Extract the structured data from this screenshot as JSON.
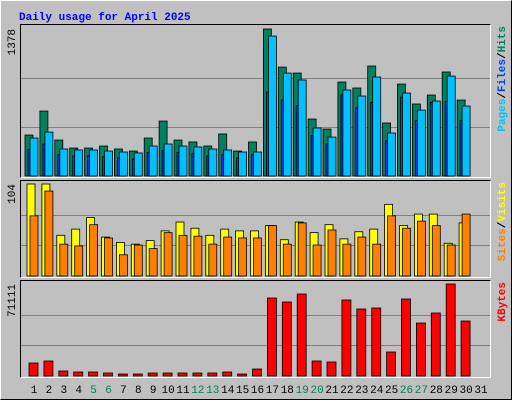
{
  "title": "Daily usage for April 2025",
  "separator": "/",
  "weekend_days": [
    "5",
    "6",
    "12",
    "13",
    "19",
    "20",
    "26",
    "27"
  ],
  "weekend_color": "#00805c",
  "chart_data": [
    {
      "type": "bar",
      "ylim": [
        0,
        1378
      ],
      "yticks": [
        1378
      ],
      "grid": true,
      "series": [
        {
          "name": "Hits",
          "color": "#00805c",
          "values": [
            384,
            609,
            337,
            262,
            262,
            281,
            253,
            234,
            356,
            515,
            337,
            319,
            281,
            394,
            234,
            319,
            1378,
            1021,
            965,
            534,
            440,
            881,
            825,
            1031,
            497,
            862,
            675,
            759,
            975,
            712,
            0
          ]
        },
        {
          "name": "Files",
          "color": "#0040ff",
          "values": [
            250,
            300,
            200,
            190,
            190,
            180,
            170,
            160,
            220,
            240,
            220,
            210,
            190,
            200,
            170,
            200,
            787,
            712,
            660,
            380,
            300,
            760,
            640,
            690,
            330,
            740,
            520,
            690,
            700,
            520,
            0
          ]
        },
        {
          "name": "Pages",
          "color": "#00c0ff",
          "values": [
            356,
            412,
            253,
            244,
            244,
            234,
            225,
            216,
            281,
            300,
            281,
            272,
            253,
            244,
            225,
            225,
            1312,
            965,
            900,
            450,
            365,
            806,
            750,
            928,
            403,
            778,
            618,
            703,
            937,
            656,
            0
          ]
        }
      ]
    },
    {
      "type": "bar",
      "ylim": [
        0,
        104
      ],
      "yticks": [
        104
      ],
      "grid": true,
      "series": [
        {
          "name": "Visits",
          "color": "#ffff00",
          "values": [
            104,
            104,
            46,
            53,
            66,
            44,
            38,
            36,
            40,
            51,
            61,
            54,
            46,
            53,
            51,
            51,
            57,
            41,
            61,
            49,
            58,
            42,
            50,
            53,
            81,
            57,
            70,
            70,
            37,
            60,
            0
          ]
        },
        {
          "name": "Sites",
          "color": "#ff8000",
          "values": [
            68,
            96,
            36,
            34,
            58,
            43,
            24,
            35,
            31,
            49,
            46,
            45,
            36,
            44,
            43,
            43,
            57,
            36,
            60,
            35,
            52,
            36,
            44,
            36,
            68,
            54,
            62,
            57,
            35,
            70,
            0
          ]
        }
      ]
    },
    {
      "type": "bar",
      "ylim": [
        0,
        71111
      ],
      "yticks": [
        71111
      ],
      "grid": true,
      "categories": [
        "1",
        "2",
        "3",
        "4",
        "5",
        "6",
        "7",
        "8",
        "9",
        "10",
        "11",
        "12",
        "13",
        "14",
        "15",
        "16",
        "17",
        "18",
        "19",
        "20",
        "21",
        "22",
        "23",
        "24",
        "25",
        "26",
        "27",
        "28",
        "29",
        "30",
        "31"
      ],
      "series": [
        {
          "name": "KBytes",
          "color": "#ff0000",
          "values": [
            10049,
            11595,
            3865,
            3092,
            3092,
            2319,
            1546,
            1546,
            2319,
            2319,
            2319,
            2319,
            2319,
            3092,
            1546,
            5411,
            60289,
            57197,
            63381,
            11595,
            10822,
            58743,
            51786,
            52559,
            18552,
            59516,
            40964,
            48694,
            71111,
            42510,
            0
          ]
        }
      ]
    }
  ]
}
